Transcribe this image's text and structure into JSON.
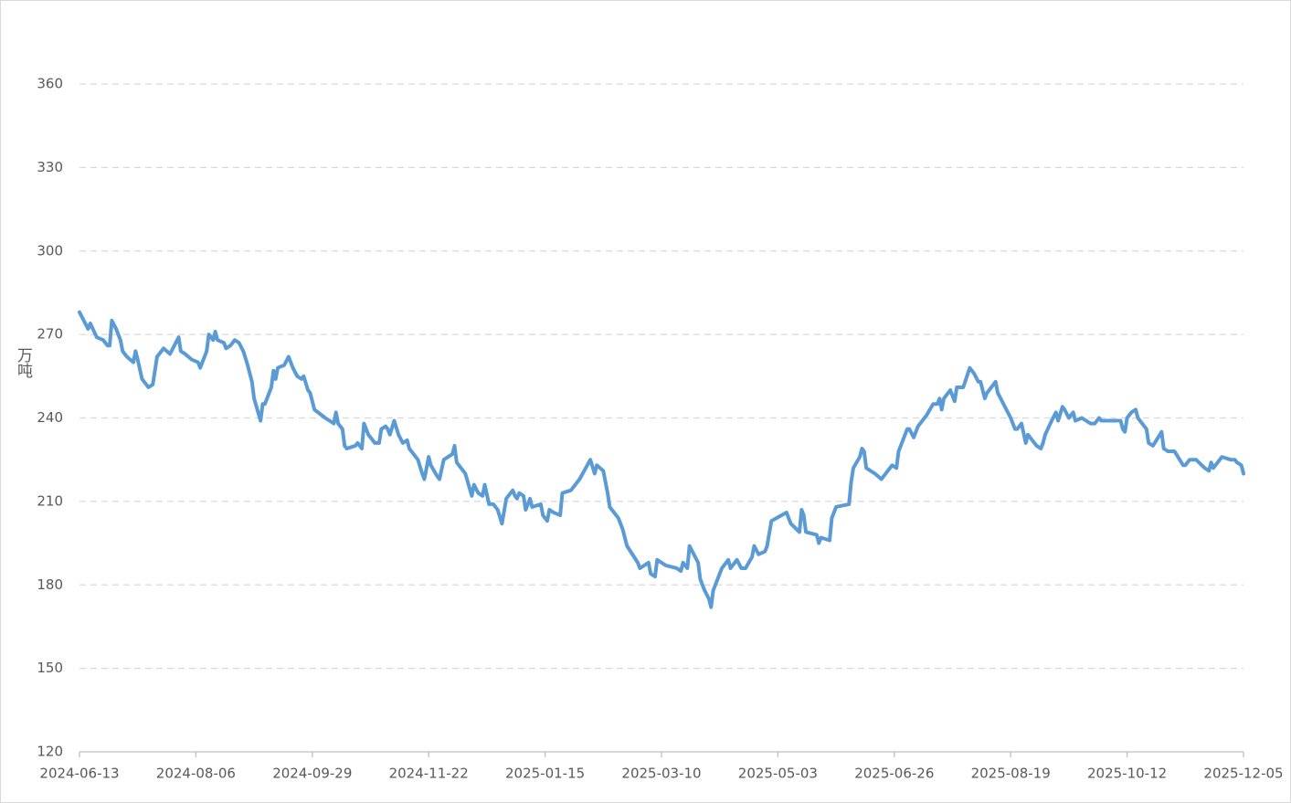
{
  "chart_data": {
    "type": "line",
    "y_label": "万吨",
    "color": "#5b9bd5",
    "grid": true,
    "ylim": [
      120,
      360
    ],
    "yticks": [
      120,
      150,
      180,
      210,
      240,
      270,
      300,
      330,
      360
    ],
    "xlim": [
      "2024-06-13",
      "2025-12-05"
    ],
    "xticks": [
      "2024-06-13",
      "2024-08-06",
      "2024-09-29",
      "2024-11-22",
      "2025-01-15",
      "2025-03-10",
      "2025-05-03",
      "2025-06-26",
      "2025-08-19",
      "2025-10-12",
      "2025-12-05"
    ],
    "x": [
      "2024-06-13",
      "2024-06-15",
      "2024-06-17",
      "2024-06-18",
      "2024-06-21",
      "2024-06-24",
      "2024-06-26",
      "2024-06-27",
      "2024-06-28",
      "2024-06-30",
      "2024-07-02",
      "2024-07-03",
      "2024-07-05",
      "2024-07-08",
      "2024-07-09",
      "2024-07-10",
      "2024-07-12",
      "2024-07-14",
      "2024-07-15",
      "2024-07-17",
      "2024-07-19",
      "2024-07-22",
      "2024-07-25",
      "2024-07-27",
      "2024-07-29",
      "2024-07-30",
      "2024-08-01",
      "2024-08-04",
      "2024-08-07",
      "2024-08-08",
      "2024-08-11",
      "2024-08-12",
      "2024-08-14",
      "2024-08-15",
      "2024-08-16",
      "2024-08-19",
      "2024-08-20",
      "2024-08-22",
      "2024-08-24",
      "2024-08-26",
      "2024-08-28",
      "2024-08-30",
      "2024-09-01",
      "2024-09-02",
      "2024-09-05",
      "2024-09-06",
      "2024-09-07",
      "2024-09-10",
      "2024-09-11",
      "2024-09-12",
      "2024-09-13",
      "2024-09-16",
      "2024-09-18",
      "2024-09-20",
      "2024-09-22",
      "2024-09-24",
      "2024-09-25",
      "2024-09-27",
      "2024-09-28",
      "2024-09-30",
      "2024-10-05",
      "2024-10-09",
      "2024-10-10",
      "2024-10-11",
      "2024-10-13",
      "2024-10-14",
      "2024-10-15",
      "2024-10-19",
      "2024-10-20",
      "2024-10-22",
      "2024-10-23",
      "2024-10-25",
      "2024-10-28",
      "2024-10-30",
      "2024-10-31",
      "2024-11-02",
      "2024-11-03",
      "2024-11-04",
      "2024-11-06",
      "2024-11-08",
      "2024-11-10",
      "2024-11-12",
      "2024-11-13",
      "2024-11-15",
      "2024-11-17",
      "2024-11-19",
      "2024-11-20",
      "2024-11-22",
      "2024-11-23",
      "2024-11-26",
      "2024-11-27",
      "2024-11-29",
      "2024-12-03",
      "2024-12-04",
      "2024-12-05",
      "2024-12-07",
      "2024-12-09",
      "2024-12-12",
      "2024-12-13",
      "2024-12-15",
      "2024-12-17",
      "2024-12-18",
      "2024-12-20",
      "2024-12-22",
      "2024-12-24",
      "2024-12-26",
      "2024-12-28",
      "2024-12-31",
      "2025-01-01",
      "2025-01-02",
      "2025-01-03",
      "2025-01-05",
      "2025-01-06",
      "2025-01-08",
      "2025-01-09",
      "2025-01-13",
      "2025-01-14",
      "2025-01-16",
      "2025-01-17",
      "2025-01-19",
      "2025-01-22",
      "2025-01-23",
      "2025-01-27",
      "2025-01-31",
      "2025-02-05",
      "2025-02-07",
      "2025-02-08",
      "2025-02-11",
      "2025-02-13",
      "2025-02-14",
      "2025-02-18",
      "2025-02-20",
      "2025-02-22",
      "2025-02-27",
      "2025-02-28",
      "2025-03-02",
      "2025-03-04",
      "2025-03-05",
      "2025-03-07",
      "2025-03-08",
      "2025-03-12",
      "2025-03-17",
      "2025-03-19",
      "2025-03-20",
      "2025-03-22",
      "2025-03-23",
      "2025-03-25",
      "2025-03-27",
      "2025-03-28",
      "2025-03-30",
      "2025-04-01",
      "2025-04-02",
      "2025-04-03",
      "2025-04-07",
      "2025-04-10",
      "2025-04-11",
      "2025-04-14",
      "2025-04-16",
      "2025-04-18",
      "2025-04-21",
      "2025-04-22",
      "2025-04-24",
      "2025-04-27",
      "2025-04-28",
      "2025-04-30",
      "2025-05-07",
      "2025-05-09",
      "2025-05-13",
      "2025-05-14",
      "2025-05-15",
      "2025-05-16",
      "2025-05-21",
      "2025-05-22",
      "2025-05-23",
      "2025-05-27",
      "2025-05-28",
      "2025-05-30",
      "2025-06-05",
      "2025-06-06",
      "2025-06-07",
      "2025-06-10",
      "2025-06-11",
      "2025-06-12",
      "2025-06-13",
      "2025-06-17",
      "2025-06-20",
      "2025-06-22",
      "2025-06-25",
      "2025-06-27",
      "2025-06-28",
      "2025-07-02",
      "2025-07-03",
      "2025-07-05",
      "2025-07-07",
      "2025-07-09",
      "2025-07-11",
      "2025-07-14",
      "2025-07-16",
      "2025-07-17",
      "2025-07-18",
      "2025-07-19",
      "2025-07-22",
      "2025-07-24",
      "2025-07-25",
      "2025-07-28",
      "2025-07-31",
      "2025-08-02",
      "2025-08-04",
      "2025-08-05",
      "2025-08-07",
      "2025-08-08",
      "2025-08-12",
      "2025-08-13",
      "2025-08-15",
      "2025-08-19",
      "2025-08-21",
      "2025-08-22",
      "2025-08-24",
      "2025-08-26",
      "2025-08-27",
      "2025-08-31",
      "2025-09-02",
      "2025-09-03",
      "2025-09-04",
      "2025-09-07",
      "2025-09-09",
      "2025-09-10",
      "2025-09-12",
      "2025-09-13",
      "2025-09-15",
      "2025-09-17",
      "2025-09-18",
      "2025-09-21",
      "2025-09-25",
      "2025-09-27",
      "2025-09-29",
      "2025-09-30",
      "2025-10-09",
      "2025-10-10",
      "2025-10-11",
      "2025-10-12",
      "2025-10-14",
      "2025-10-16",
      "2025-10-17",
      "2025-10-21",
      "2025-10-22",
      "2025-10-24",
      "2025-10-28",
      "2025-10-29",
      "2025-10-31",
      "2025-11-03",
      "2025-11-07",
      "2025-11-08",
      "2025-11-10",
      "2025-11-13",
      "2025-11-17",
      "2025-11-19",
      "2025-11-20",
      "2025-11-21",
      "2025-11-24",
      "2025-11-25",
      "2025-11-29",
      "2025-12-01",
      "2025-12-02",
      "2025-12-04",
      "2025-12-05"
    ],
    "values": [
      278,
      275,
      272,
      274,
      269,
      268,
      266,
      266,
      275,
      272,
      268,
      264,
      262,
      260,
      264,
      261,
      254,
      252,
      251,
      252,
      262,
      265,
      263,
      266,
      269,
      264,
      263,
      261,
      260,
      258,
      264,
      270,
      268,
      271,
      268,
      267,
      265,
      266,
      268,
      267,
      264,
      259,
      253,
      247,
      239,
      245,
      245,
      251,
      257,
      254,
      258,
      259,
      262,
      258,
      255,
      254,
      255,
      250,
      249,
      243,
      240,
      238,
      242,
      238,
      236,
      230,
      229,
      230,
      231,
      229,
      238,
      234,
      231,
      231,
      236,
      237,
      236,
      234,
      239,
      234,
      231,
      232,
      229,
      227,
      225,
      220,
      218,
      226,
      223,
      219,
      218,
      225,
      227,
      230,
      224,
      222,
      220,
      212,
      216,
      213,
      212,
      216,
      209,
      209,
      207,
      202,
      211,
      214,
      212,
      211,
      213,
      212,
      207,
      211,
      208,
      209,
      205,
      203,
      207,
      206,
      205,
      213,
      214,
      218,
      225,
      220,
      223,
      221,
      213,
      208,
      204,
      200,
      194,
      188,
      186,
      187,
      188,
      184,
      183,
      189,
      187,
      186,
      185,
      188,
      186,
      194,
      191,
      188,
      182,
      178,
      175,
      172,
      178,
      186,
      189,
      186,
      189,
      186,
      186,
      190,
      194,
      191,
      192,
      194,
      203,
      206,
      202,
      199,
      207,
      205,
      199,
      198,
      195,
      197,
      196,
      204,
      208,
      209,
      217,
      222,
      226,
      229,
      228,
      222,
      220,
      218,
      220,
      223,
      222,
      228,
      236,
      236,
      233,
      237,
      239,
      241,
      245,
      245,
      247,
      243,
      247,
      250,
      246,
      251,
      251,
      258,
      256,
      253,
      253,
      247,
      249,
      253,
      249,
      246,
      240,
      236,
      236,
      238,
      231,
      234,
      230,
      229,
      231,
      234,
      239,
      242,
      239,
      244,
      243,
      240,
      242,
      239,
      240,
      238,
      238,
      240,
      239,
      239,
      236,
      235,
      240,
      242,
      243,
      240,
      236,
      231,
      230,
      235,
      229,
      228,
      228,
      223,
      223,
      225,
      225,
      222,
      221,
      224,
      222,
      225,
      226,
      225,
      225,
      224,
      223,
      220
    ]
  }
}
